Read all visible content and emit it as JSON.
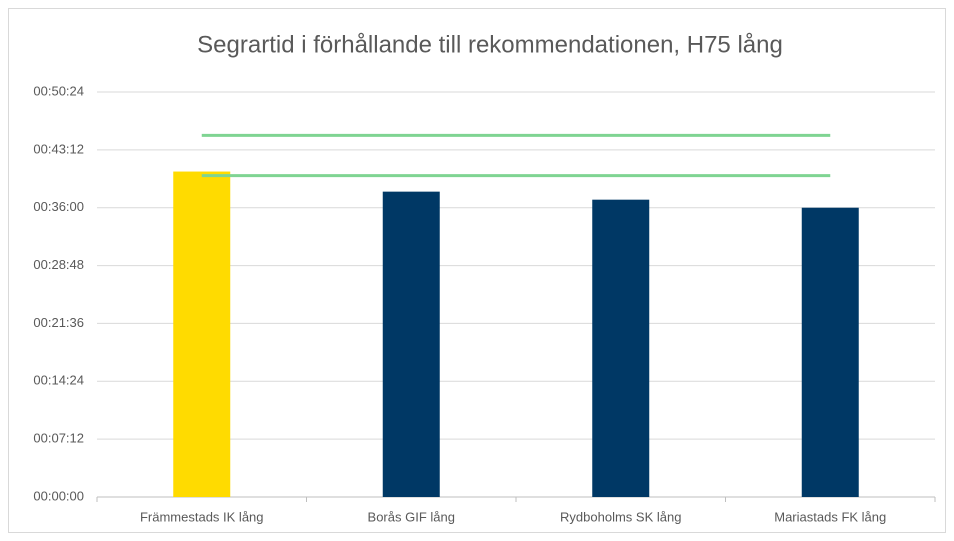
{
  "chart_data": {
    "type": "bar",
    "title": "Segrartid i förhållande till rekommendationen, H75 lång",
    "categories": [
      "Främmestads IK lång",
      "Borås GIF lång",
      "Rydboholms SK lång",
      "Mariastads FK lång"
    ],
    "series": [
      {
        "type": "bar",
        "colors": [
          "#ffdb00",
          "#003865",
          "#003865",
          "#003865"
        ],
        "values": [
          2430,
          2280,
          2220,
          2160
        ]
      },
      {
        "type": "line",
        "color": "#7fd492",
        "values": [
          2700,
          2700,
          2700,
          2700
        ]
      },
      {
        "type": "line",
        "color": "#7fd492",
        "values": [
          2400,
          2400,
          2400,
          2400
        ]
      }
    ],
    "ylim": [
      0,
      3024
    ],
    "yticks": [
      {
        "value": 0,
        "label": "00:00:00"
      },
      {
        "value": 432,
        "label": "00:07:12"
      },
      {
        "value": 864,
        "label": "00:14:24"
      },
      {
        "value": 1296,
        "label": "00:21:36"
      },
      {
        "value": 1728,
        "label": "00:28:48"
      },
      {
        "value": 2160,
        "label": "00:36:00"
      },
      {
        "value": 2592,
        "label": "00:43:12"
      },
      {
        "value": 3024,
        "label": "00:50:24"
      }
    ],
    "grid": true
  }
}
